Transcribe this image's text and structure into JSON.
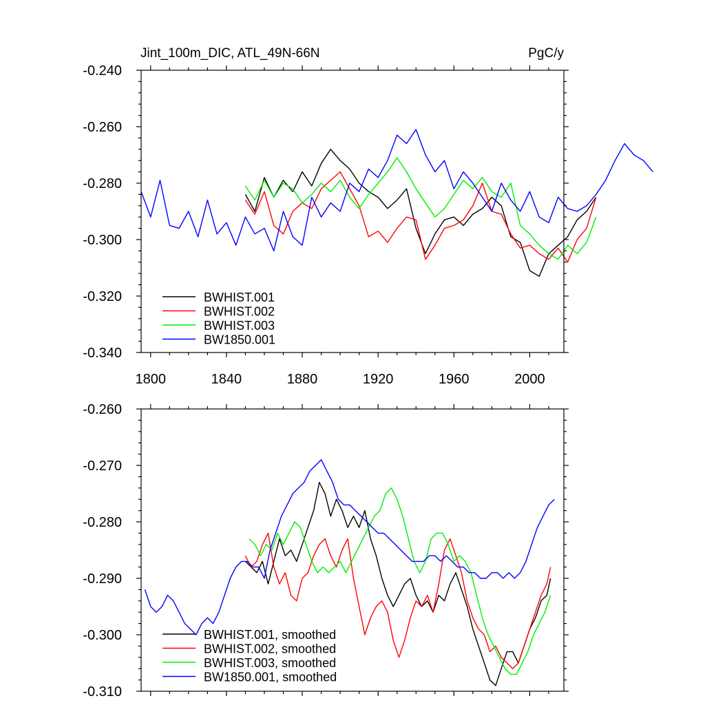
{
  "chart_data": [
    {
      "type": "line",
      "title": "Jint_100m_DIC, ATL_49N-66N",
      "units": "PgC/y",
      "xlabel": "",
      "ylabel": "",
      "xlim": [
        1795,
        2018
      ],
      "ylim": [
        -0.34,
        -0.24
      ],
      "xticks": [
        1800,
        1840,
        1880,
        1920,
        1960,
        2000
      ],
      "xtick_labels": [
        "1800",
        "1840",
        "1880",
        "1920",
        "1960",
        "2000"
      ],
      "yticks": [
        -0.34,
        -0.32,
        -0.3,
        -0.28,
        -0.26,
        -0.24
      ],
      "ytick_labels": [
        "-0.340",
        "-0.320",
        "-0.300",
        "-0.280",
        "-0.260",
        "-0.240"
      ],
      "legend_position": "bottom-left",
      "series": [
        {
          "name": "BWHIST.001",
          "color": "#000000",
          "x_start": 1850,
          "x_step": 5,
          "values": [
            -0.284,
            -0.29,
            -0.278,
            -0.285,
            -0.279,
            -0.283,
            -0.276,
            -0.281,
            -0.273,
            -0.268,
            -0.272,
            -0.275,
            -0.28,
            -0.283,
            -0.285,
            -0.289,
            -0.286,
            -0.282,
            -0.296,
            -0.305,
            -0.298,
            -0.293,
            -0.292,
            -0.295,
            -0.291,
            -0.289,
            -0.285,
            -0.288,
            -0.299,
            -0.301,
            -0.311,
            -0.313,
            -0.305,
            -0.302,
            -0.299,
            -0.293,
            -0.29,
            -0.285
          ]
        },
        {
          "name": "BWHIST.002",
          "color": "#ff0000",
          "x_start": 1850,
          "x_step": 5,
          "values": [
            -0.286,
            -0.291,
            -0.283,
            -0.295,
            -0.298,
            -0.29,
            -0.287,
            -0.289,
            -0.282,
            -0.279,
            -0.276,
            -0.282,
            -0.288,
            -0.299,
            -0.297,
            -0.301,
            -0.296,
            -0.292,
            -0.293,
            -0.307,
            -0.302,
            -0.296,
            -0.295,
            -0.293,
            -0.288,
            -0.28,
            -0.29,
            -0.291,
            -0.298,
            -0.303,
            -0.302,
            -0.305,
            -0.307,
            -0.303,
            -0.308,
            -0.3,
            -0.296,
            -0.285
          ]
        },
        {
          "name": "BWHIST.003",
          "color": "#00ee00",
          "x_start": 1850,
          "x_step": 5,
          "values": [
            -0.281,
            -0.286,
            -0.279,
            -0.285,
            -0.28,
            -0.282,
            -0.287,
            -0.284,
            -0.28,
            -0.283,
            -0.279,
            -0.285,
            -0.289,
            -0.284,
            -0.28,
            -0.276,
            -0.271,
            -0.276,
            -0.282,
            -0.287,
            -0.292,
            -0.289,
            -0.284,
            -0.279,
            -0.282,
            -0.278,
            -0.283,
            -0.285,
            -0.28,
            -0.295,
            -0.298,
            -0.302,
            -0.305,
            -0.307,
            -0.302,
            -0.305,
            -0.301,
            -0.292
          ]
        },
        {
          "name": "BW1850.001",
          "color": "#0000ff",
          "x_start": 1795,
          "x_step": 5,
          "values": [
            -0.283,
            -0.292,
            -0.279,
            -0.295,
            -0.296,
            -0.29,
            -0.299,
            -0.286,
            -0.298,
            -0.294,
            -0.302,
            -0.292,
            -0.298,
            -0.296,
            -0.304,
            -0.29,
            -0.299,
            -0.302,
            -0.285,
            -0.292,
            -0.287,
            -0.29,
            -0.28,
            -0.283,
            -0.275,
            -0.278,
            -0.272,
            -0.263,
            -0.266,
            -0.261,
            -0.27,
            -0.276,
            -0.272,
            -0.282,
            -0.276,
            -0.28,
            -0.285,
            -0.29,
            -0.28,
            -0.286,
            -0.29,
            -0.283,
            -0.292,
            -0.294,
            -0.285,
            -0.289,
            -0.29,
            -0.288,
            -0.284,
            -0.279,
            -0.272,
            -0.266,
            -0.27,
            -0.272,
            -0.276
          ]
        }
      ]
    },
    {
      "type": "line",
      "title": "",
      "xlabel": "",
      "ylabel": "",
      "xlim": [
        1795,
        2018
      ],
      "ylim": [
        -0.31,
        -0.26
      ],
      "xticks": [
        1800,
        1840,
        1880,
        1920,
        1960,
        2000
      ],
      "yticks": [
        -0.31,
        -0.3,
        -0.29,
        -0.28,
        -0.27,
        -0.26
      ],
      "ytick_labels": [
        "-0.310",
        "-0.300",
        "-0.290",
        "-0.280",
        "-0.270",
        "-0.260"
      ],
      "legend_position": "bottom-left",
      "series": [
        {
          "name": "BWHIST.001, smoothed",
          "color": "#000000",
          "x": [
            1850,
            1853,
            1856,
            1859,
            1862,
            1865,
            1868,
            1871,
            1874,
            1877,
            1880,
            1883,
            1886,
            1889,
            1892,
            1895,
            1898,
            1901,
            1904,
            1907,
            1910,
            1913,
            1916,
            1919,
            1922,
            1925,
            1928,
            1931,
            1934,
            1937,
            1940,
            1943,
            1946,
            1949,
            1952,
            1955,
            1958,
            1961,
            1964,
            1967,
            1970,
            1973,
            1976,
            1979,
            1982,
            1985,
            1988,
            1991,
            1994,
            1997,
            2000,
            2003,
            2006,
            2009,
            2011
          ],
          "values": [
            -0.287,
            -0.288,
            -0.289,
            -0.287,
            -0.291,
            -0.287,
            -0.283,
            -0.286,
            -0.285,
            -0.287,
            -0.284,
            -0.281,
            -0.278,
            -0.273,
            -0.275,
            -0.279,
            -0.276,
            -0.278,
            -0.281,
            -0.279,
            -0.281,
            -0.278,
            -0.283,
            -0.286,
            -0.29,
            -0.293,
            -0.295,
            -0.293,
            -0.291,
            -0.29,
            -0.293,
            -0.295,
            -0.294,
            -0.296,
            -0.293,
            -0.294,
            -0.291,
            -0.289,
            -0.292,
            -0.295,
            -0.299,
            -0.302,
            -0.305,
            -0.308,
            -0.309,
            -0.306,
            -0.303,
            -0.303,
            -0.305,
            -0.302,
            -0.299,
            -0.297,
            -0.294,
            -0.293,
            -0.29
          ]
        },
        {
          "name": "BWHIST.002, smoothed",
          "color": "#ff0000",
          "x": [
            1850,
            1853,
            1856,
            1859,
            1862,
            1865,
            1868,
            1871,
            1874,
            1877,
            1880,
            1883,
            1886,
            1889,
            1892,
            1895,
            1898,
            1901,
            1904,
            1907,
            1910,
            1913,
            1916,
            1919,
            1922,
            1925,
            1928,
            1931,
            1934,
            1937,
            1940,
            1943,
            1946,
            1949,
            1952,
            1955,
            1958,
            1961,
            1964,
            1967,
            1970,
            1973,
            1976,
            1979,
            1982,
            1985,
            1988,
            1991,
            1994,
            1997,
            2000,
            2003,
            2006,
            2009,
            2011
          ],
          "values": [
            -0.286,
            -0.288,
            -0.287,
            -0.284,
            -0.282,
            -0.288,
            -0.291,
            -0.289,
            -0.293,
            -0.294,
            -0.29,
            -0.289,
            -0.286,
            -0.284,
            -0.283,
            -0.286,
            -0.288,
            -0.285,
            -0.283,
            -0.29,
            -0.295,
            -0.3,
            -0.297,
            -0.295,
            -0.294,
            -0.296,
            -0.301,
            -0.304,
            -0.301,
            -0.297,
            -0.294,
            -0.295,
            -0.293,
            -0.296,
            -0.291,
            -0.285,
            -0.283,
            -0.286,
            -0.289,
            -0.294,
            -0.297,
            -0.299,
            -0.3,
            -0.303,
            -0.302,
            -0.304,
            -0.305,
            -0.306,
            -0.305,
            -0.302,
            -0.299,
            -0.296,
            -0.293,
            -0.291,
            -0.288
          ]
        },
        {
          "name": "BWHIST.003, smoothed",
          "color": "#00ee00",
          "x": [
            1852,
            1855,
            1858,
            1861,
            1864,
            1867,
            1870,
            1873,
            1876,
            1879,
            1882,
            1885,
            1888,
            1891,
            1894,
            1897,
            1900,
            1903,
            1906,
            1909,
            1912,
            1915,
            1918,
            1921,
            1924,
            1927,
            1930,
            1933,
            1936,
            1939,
            1942,
            1945,
            1948,
            1951,
            1954,
            1957,
            1960,
            1963,
            1966,
            1969,
            1972,
            1975,
            1978,
            1981,
            1984,
            1987,
            1990,
            1993,
            1996,
            1999,
            2002,
            2005,
            2008,
            2011
          ],
          "values": [
            -0.283,
            -0.284,
            -0.286,
            -0.284,
            -0.285,
            -0.282,
            -0.284,
            -0.282,
            -0.28,
            -0.281,
            -0.284,
            -0.287,
            -0.289,
            -0.288,
            -0.289,
            -0.288,
            -0.287,
            -0.289,
            -0.287,
            -0.285,
            -0.283,
            -0.281,
            -0.279,
            -0.278,
            -0.275,
            -0.274,
            -0.276,
            -0.279,
            -0.283,
            -0.287,
            -0.289,
            -0.287,
            -0.283,
            -0.282,
            -0.282,
            -0.284,
            -0.287,
            -0.286,
            -0.287,
            -0.289,
            -0.293,
            -0.297,
            -0.3,
            -0.302,
            -0.304,
            -0.306,
            -0.307,
            -0.307,
            -0.305,
            -0.303,
            -0.3,
            -0.298,
            -0.296,
            -0.293
          ]
        },
        {
          "name": "BW1850.001, smoothed",
          "color": "#0000ff",
          "x": [
            1797,
            1800,
            1803,
            1806,
            1809,
            1812,
            1815,
            1818,
            1821,
            1824,
            1827,
            1830,
            1833,
            1836,
            1839,
            1842,
            1845,
            1848,
            1851,
            1854,
            1857,
            1860,
            1863,
            1866,
            1869,
            1872,
            1875,
            1878,
            1881,
            1884,
            1887,
            1890,
            1893,
            1896,
            1899,
            1902,
            1905,
            1908,
            1911,
            1914,
            1917,
            1920,
            1923,
            1926,
            1929,
            1932,
            1935,
            1938,
            1941,
            1944,
            1947,
            1950,
            1953,
            1956,
            1959,
            1962,
            1965,
            1968,
            1971,
            1974,
            1977,
            1980,
            1983,
            1986,
            1989,
            1992,
            1995,
            1998,
            2001,
            2004,
            2007,
            2010,
            2013
          ],
          "values": [
            -0.292,
            -0.295,
            -0.296,
            -0.295,
            -0.293,
            -0.294,
            -0.296,
            -0.298,
            -0.299,
            -0.3,
            -0.298,
            -0.297,
            -0.298,
            -0.296,
            -0.293,
            -0.29,
            -0.288,
            -0.287,
            -0.287,
            -0.288,
            -0.288,
            -0.29,
            -0.285,
            -0.282,
            -0.279,
            -0.277,
            -0.275,
            -0.274,
            -0.273,
            -0.271,
            -0.27,
            -0.269,
            -0.271,
            -0.273,
            -0.276,
            -0.277,
            -0.277,
            -0.278,
            -0.279,
            -0.28,
            -0.281,
            -0.282,
            -0.282,
            -0.283,
            -0.284,
            -0.285,
            -0.286,
            -0.287,
            -0.287,
            -0.287,
            -0.286,
            -0.286,
            -0.287,
            -0.286,
            -0.287,
            -0.288,
            -0.288,
            -0.289,
            -0.289,
            -0.29,
            -0.29,
            -0.289,
            -0.289,
            -0.29,
            -0.289,
            -0.29,
            -0.289,
            -0.287,
            -0.284,
            -0.281,
            -0.279,
            -0.277,
            -0.276
          ]
        }
      ]
    }
  ]
}
